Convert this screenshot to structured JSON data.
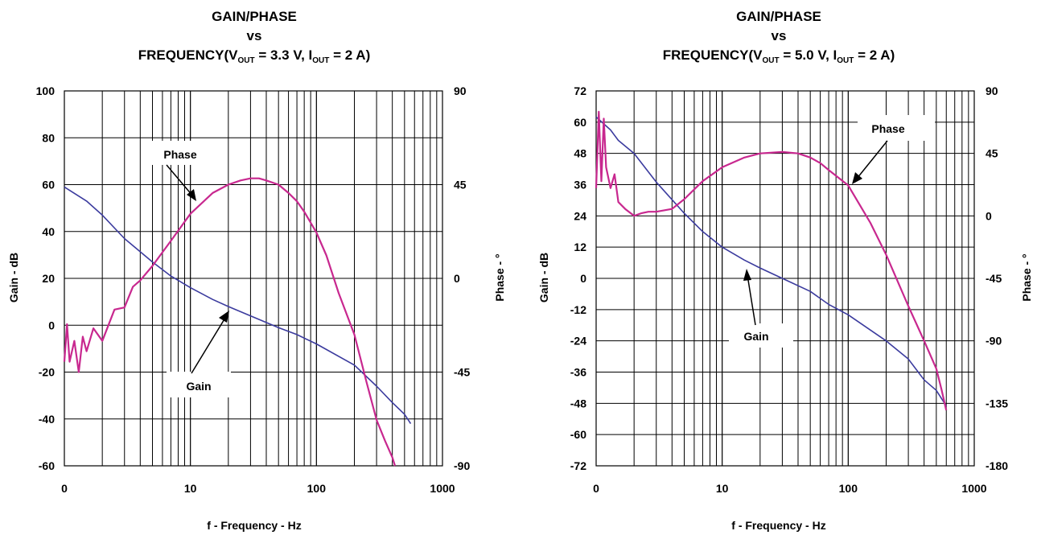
{
  "colors": {
    "gain": "#3b3b9e",
    "phase": "#c8288f",
    "grid": "#000000"
  },
  "charts": [
    {
      "title_line1": "GAIN/PHASE",
      "title_line2": "vs",
      "title_line3_prefix": "FREQUENCY(V",
      "title_sub_out1": "OUT",
      "title_line3_mid": " = 3.3 V, I",
      "title_sub_out2": "OUT",
      "title_line3_suffix": " = 2 A)",
      "xlabel": "f - Frequency - Hz",
      "ylabel_left": "Gain - dB",
      "ylabel_right": "Phase - °",
      "x_ticks": [
        "0",
        "10",
        "100",
        "1000"
      ],
      "left_ticks": [
        "100",
        "80",
        "60",
        "40",
        "20",
        "0",
        "-20",
        "-40",
        "-60"
      ],
      "right_ticks": [
        "90",
        "45",
        "0",
        "-45",
        "-90"
      ],
      "phase_label": "Phase",
      "gain_label": "Gain"
    },
    {
      "title_line1": "GAIN/PHASE",
      "title_line2": "vs",
      "title_line3_prefix": "FREQUENCY(V",
      "title_sub_out1": "OUT",
      "title_line3_mid": " = 5.0 V, I",
      "title_sub_out2": "OUT",
      "title_line3_suffix": " = 2 A)",
      "xlabel": "f - Frequency - Hz",
      "ylabel_left": "Gain - dB",
      "ylabel_right": "Phase - °",
      "x_ticks": [
        "0",
        "10",
        "100",
        "1000"
      ],
      "left_ticks": [
        "72",
        "60",
        "48",
        "36",
        "24",
        "12",
        "0",
        "-12",
        "-24",
        "-36",
        "-48",
        "-60",
        "-72"
      ],
      "right_ticks": [
        "90",
        "45",
        "0",
        "-45",
        "-90",
        "-135",
        "-180"
      ],
      "phase_label": "Phase",
      "gain_label": "Gain"
    }
  ],
  "chart_data": [
    {
      "type": "line",
      "x_scale": "log",
      "xlim": [
        1,
        1000
      ],
      "ylim_left": [
        -60,
        100
      ],
      "ylim_right": [
        -90,
        90
      ],
      "series": [
        {
          "name": "Gain",
          "axis": "left",
          "x": [
            1,
            1.5,
            2,
            3,
            5,
            7,
            10,
            15,
            20,
            30,
            50,
            70,
            100,
            200,
            300,
            400,
            500,
            560
          ],
          "y": [
            59,
            53,
            47,
            37,
            27,
            21,
            16,
            11,
            8,
            4,
            -1,
            -4,
            -8,
            -17,
            -26,
            -33,
            -38,
            -42
          ]
        },
        {
          "name": "Phase",
          "axis": "right",
          "x": [
            1,
            1.05,
            1.1,
            1.2,
            1.3,
            1.4,
            1.5,
            1.7,
            2,
            2.5,
            3,
            3.5,
            4,
            5,
            7,
            10,
            15,
            20,
            25,
            30,
            35,
            40,
            50,
            60,
            70,
            80,
            100,
            120,
            150,
            200,
            250,
            300,
            350,
            400,
            420
          ],
          "y": [
            -40,
            -22,
            -40,
            -30,
            -45,
            -28,
            -35,
            -24,
            -30,
            -15,
            -14,
            -4,
            -1,
            6,
            18,
            31,
            41,
            45,
            47,
            48,
            48,
            47,
            45,
            41,
            37,
            32,
            22,
            11,
            -7,
            -27,
            -50,
            -68,
            -78,
            -86,
            -90
          ]
        }
      ]
    },
    {
      "type": "line",
      "x_scale": "log",
      "xlim": [
        1,
        1000
      ],
      "ylim_left": [
        -72,
        72
      ],
      "ylim_right": [
        -180,
        90
      ],
      "series": [
        {
          "name": "Gain",
          "axis": "left",
          "x": [
            1,
            1.3,
            1.5,
            2,
            3,
            5,
            7,
            10,
            15,
            20,
            30,
            50,
            70,
            100,
            200,
            300,
            400,
            500,
            600
          ],
          "y": [
            62,
            57,
            53,
            48,
            37,
            25,
            18,
            12,
            7,
            4,
            0,
            -5,
            -10,
            -14,
            -24,
            -31,
            -39,
            -43,
            -49
          ]
        },
        {
          "name": "Phase",
          "axis": "right",
          "x": [
            1,
            1.05,
            1.1,
            1.15,
            1.2,
            1.3,
            1.4,
            1.5,
            1.7,
            2,
            2.3,
            2.6,
            3,
            4,
            5,
            7,
            10,
            15,
            20,
            30,
            40,
            50,
            60,
            70,
            100,
            150,
            200,
            300,
            400,
            500,
            550,
            600
          ],
          "y": [
            20,
            75,
            25,
            70,
            35,
            20,
            30,
            10,
            5,
            0,
            2,
            3,
            3,
            5,
            12,
            25,
            35,
            42,
            45,
            46,
            45,
            42,
            38,
            33,
            22,
            -5,
            -28,
            -65,
            -90,
            -110,
            -125,
            -140
          ]
        }
      ]
    }
  ]
}
